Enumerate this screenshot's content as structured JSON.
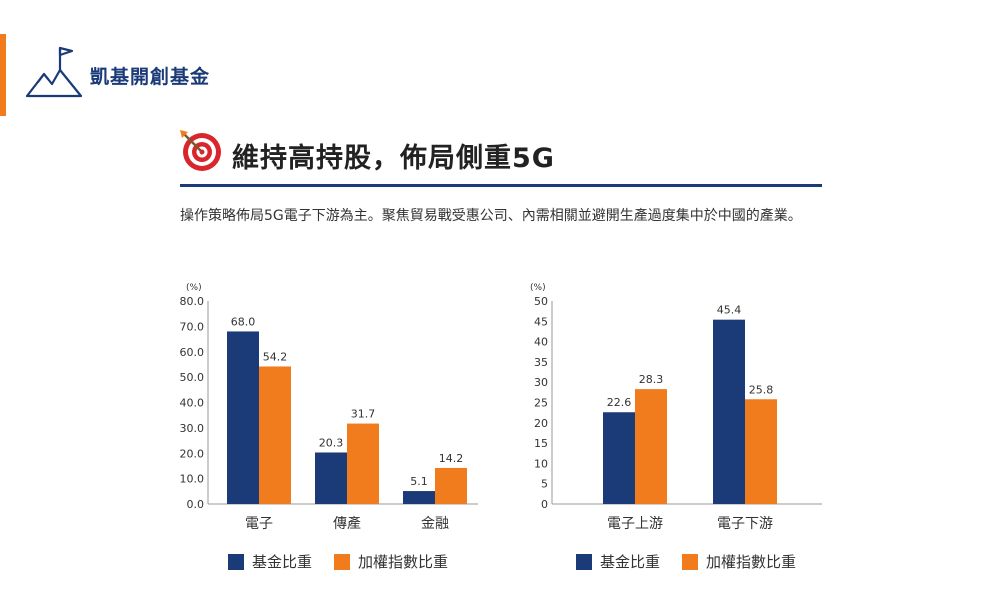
{
  "brand": "凱基開創基金",
  "heading": "維持高持股，佈局側重5G",
  "body_text": "操作策略佈局5G電子下游為主。聚焦貿易戰受惠公司、內需相關並避開生產過度集中於中國的產業。",
  "colors": {
    "navy": "#1b3a78",
    "orange": "#f07c1e",
    "axis": "#999999"
  },
  "icons": [
    "mountain-flag-icon",
    "target-icon"
  ],
  "legend": [
    "基金比重",
    "加權指數比重"
  ],
  "chart_data": [
    {
      "type": "bar",
      "unit_label": "(%)",
      "categories": [
        "電子",
        "傳產",
        "金融"
      ],
      "series": [
        {
          "name": "基金比重",
          "color": "#1b3a78",
          "values": [
            68.0,
            20.3,
            5.1
          ]
        },
        {
          "name": "加權指數比重",
          "color": "#f07c1e",
          "values": [
            54.2,
            31.7,
            14.2
          ]
        }
      ],
      "ylim": [
        0,
        80
      ],
      "yticks": [
        "0.0",
        "10.0",
        "20.0",
        "30.0",
        "40.0",
        "50.0",
        "60.0",
        "70.0",
        "80.0"
      ],
      "data_labels": true,
      "legend_position": "bottom"
    },
    {
      "type": "bar",
      "unit_label": "(%)",
      "categories": [
        "電子上游",
        "電子下游"
      ],
      "series": [
        {
          "name": "基金比重",
          "color": "#1b3a78",
          "values": [
            22.6,
            45.4
          ]
        },
        {
          "name": "加權指數比重",
          "color": "#f07c1e",
          "values": [
            28.3,
            25.8
          ]
        }
      ],
      "ylim": [
        0,
        50
      ],
      "yticks": [
        "0",
        "5",
        "10",
        "15",
        "20",
        "25",
        "30",
        "35",
        "40",
        "45",
        "50"
      ],
      "data_labels": true,
      "legend_position": "bottom"
    }
  ]
}
